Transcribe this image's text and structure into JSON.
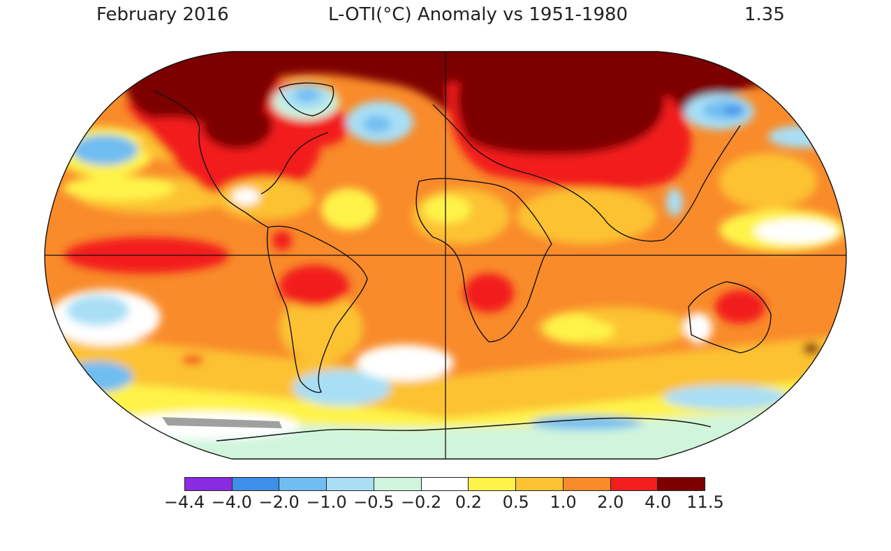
{
  "header": {
    "date": "February 2016",
    "title": "L-OTI(°C) Anomaly vs 1951-1980",
    "global_mean": "1.35"
  },
  "legend": {
    "colors": [
      "#8a2be2",
      "#3d8fe8",
      "#70bdf2",
      "#a8dff5",
      "#d0f5dc",
      "#ffffff",
      "#fff34a",
      "#fcc232",
      "#f98b2a",
      "#f21e1e",
      "#7d0000"
    ],
    "ticks": [
      "−4.4",
      "−4.0",
      "−2.0",
      "−1.0",
      "−0.5",
      "−0.2",
      "0.2",
      "0.5",
      "1.0",
      "2.0",
      "4.0",
      "11.5"
    ]
  },
  "map": {
    "projection": "Robinson",
    "colors": {
      "base": "#f98b2a",
      "very_hot": "#7d0000",
      "hot": "#f21e1e",
      "warm": "#fcc232",
      "mild": "#fff34a",
      "neutral": "#ffffff",
      "cool": "#d0f5dc",
      "cold": "#a8dff5",
      "colder": "#70bdf2",
      "coldest": "#3d8fe8",
      "no_data": "#a0a0a0",
      "coast": "#111111"
    }
  }
}
